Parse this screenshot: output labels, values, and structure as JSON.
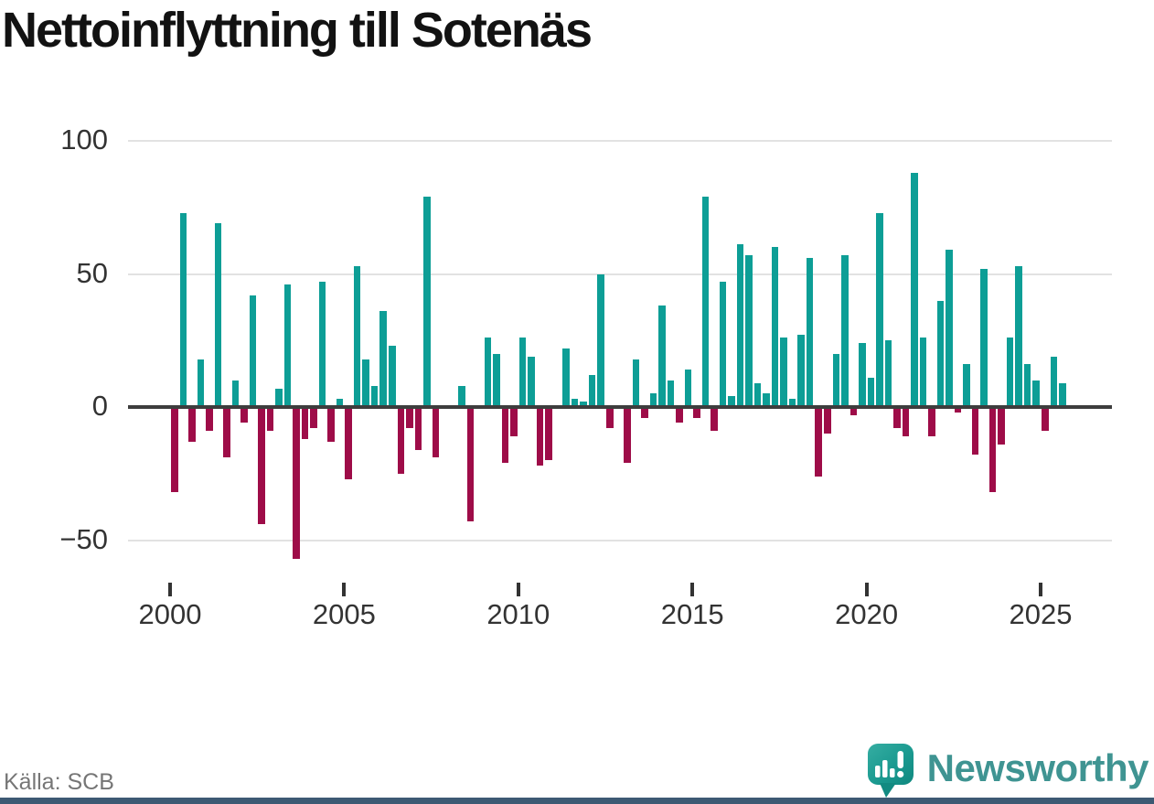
{
  "title": "Nettoinflyttning till Sotenäs",
  "source": "Källa: SCB",
  "brand": {
    "name": "Newsworthy",
    "logo_icon": "newsworthy-speech-bubble-chart-icon"
  },
  "colors": {
    "positive": "#0d9e96",
    "negative": "#9e0c48",
    "grid": "#e2e2e2",
    "zero_axis": "#3d3d3d",
    "axis_text": "#333333",
    "muted_text": "#767676",
    "brand_teal": "#3f9492",
    "footer_bar": "#3d5973"
  },
  "chart_data": {
    "type": "bar",
    "title": "Nettoinflyttning till Sotenäs",
    "xlabel": "",
    "ylabel": "",
    "frequency": "quarterly",
    "period_start": "2000-Q1",
    "period_end": "2025-Q3",
    "legend": "none",
    "grid": "horizontal",
    "ylim": [
      -60,
      105
    ],
    "yticks": [
      100,
      50,
      0,
      -50
    ],
    "y_tick_labels": [
      "100",
      "50",
      "0",
      "−50"
    ],
    "x_tick_labels": [
      "2000",
      "2005",
      "2010",
      "2015",
      "2020",
      "2025"
    ],
    "values": [
      -32,
      73,
      -13,
      18,
      -9,
      69,
      -19,
      10,
      -6,
      42,
      -44,
      -9,
      7,
      46,
      -57,
      -12,
      -8,
      47,
      -13,
      3,
      -27,
      53,
      18,
      8,
      36,
      23,
      -25,
      -8,
      -16,
      79,
      -19,
      0,
      0,
      8,
      -43,
      0,
      26,
      20,
      -21,
      -11,
      26,
      19,
      -22,
      -20,
      0,
      22,
      3,
      2,
      12,
      50,
      -8,
      0,
      -21,
      18,
      -4,
      5,
      38,
      10,
      -6,
      14,
      -4,
      79,
      -9,
      47,
      4,
      61,
      57,
      9,
      5,
      60,
      26,
      3,
      27,
      56,
      -26,
      -10,
      20,
      57,
      -3,
      24,
      11,
      73,
      25,
      -8,
      -11,
      88,
      26,
      -11,
      40,
      59,
      -2,
      16,
      -18,
      52,
      -32,
      -14,
      26,
      53,
      16,
      10,
      -9,
      19,
      9
    ]
  }
}
